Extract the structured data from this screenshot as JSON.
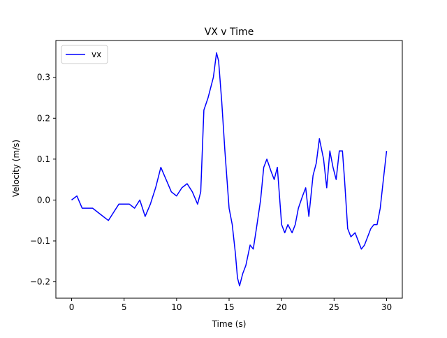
{
  "chart_data": {
    "type": "line",
    "title": "VX v Time",
    "xlabel": "Time (s)",
    "ylabel": "Velocity (m/s)",
    "xlim": [
      -1.5,
      31.5
    ],
    "ylim": [
      -0.24,
      0.39
    ],
    "xticks": [
      0,
      5,
      10,
      15,
      20,
      25,
      30
    ],
    "xtick_labels": [
      "0",
      "5",
      "10",
      "15",
      "20",
      "25",
      "30"
    ],
    "yticks": [
      -0.2,
      -0.1,
      0.0,
      0.1,
      0.2,
      0.3
    ],
    "ytick_labels": [
      "−0.2",
      "−0.1",
      "0.0",
      "0.1",
      "0.2",
      "0.3"
    ],
    "grid": false,
    "legend": {
      "placement": "top-left",
      "entries": [
        "vx"
      ]
    },
    "series": [
      {
        "name": "vx",
        "color": "#0000ff",
        "x": [
          0,
          0.5,
          1.0,
          1.5,
          2.0,
          2.5,
          3.0,
          3.5,
          4.0,
          4.5,
          5.0,
          5.5,
          6.0,
          6.5,
          7.0,
          7.5,
          8.0,
          8.5,
          9.0,
          9.5,
          10.0,
          10.5,
          11.0,
          11.5,
          12.0,
          12.3,
          12.6,
          13.0,
          13.5,
          13.8,
          14.0,
          14.3,
          14.6,
          15.0,
          15.3,
          15.6,
          15.8,
          16.0,
          16.3,
          16.6,
          17.0,
          17.3,
          17.6,
          18.0,
          18.3,
          18.6,
          19.0,
          19.3,
          19.6,
          20.0,
          20.3,
          20.6,
          21.0,
          21.3,
          21.6,
          22.0,
          22.3,
          22.6,
          23.0,
          23.3,
          23.6,
          24.0,
          24.3,
          24.6,
          24.9,
          25.2,
          25.5,
          25.8,
          26.0,
          26.3,
          26.6,
          27.0,
          27.3,
          27.6,
          27.9,
          28.2,
          28.5,
          28.8,
          29.1,
          29.4,
          29.7,
          30.0
        ],
        "y": [
          0.0,
          0.01,
          -0.02,
          -0.02,
          -0.02,
          -0.03,
          -0.04,
          -0.05,
          -0.03,
          -0.01,
          -0.01,
          -0.01,
          -0.02,
          0.0,
          -0.04,
          -0.01,
          0.03,
          0.08,
          0.05,
          0.02,
          0.01,
          0.03,
          0.04,
          0.02,
          -0.01,
          0.02,
          0.22,
          0.25,
          0.3,
          0.36,
          0.34,
          0.24,
          0.12,
          -0.02,
          -0.06,
          -0.13,
          -0.19,
          -0.21,
          -0.18,
          -0.16,
          -0.11,
          -0.12,
          -0.07,
          0.0,
          0.08,
          0.1,
          0.07,
          0.05,
          0.08,
          -0.06,
          -0.08,
          -0.06,
          -0.08,
          -0.06,
          -0.02,
          0.01,
          0.03,
          -0.04,
          0.06,
          0.09,
          0.15,
          0.1,
          0.03,
          0.12,
          0.08,
          0.05,
          0.12,
          0.12,
          0.05,
          -0.07,
          -0.09,
          -0.08,
          -0.1,
          -0.12,
          -0.11,
          -0.09,
          -0.07,
          -0.06,
          -0.06,
          -0.02,
          0.05,
          0.12
        ]
      }
    ]
  }
}
